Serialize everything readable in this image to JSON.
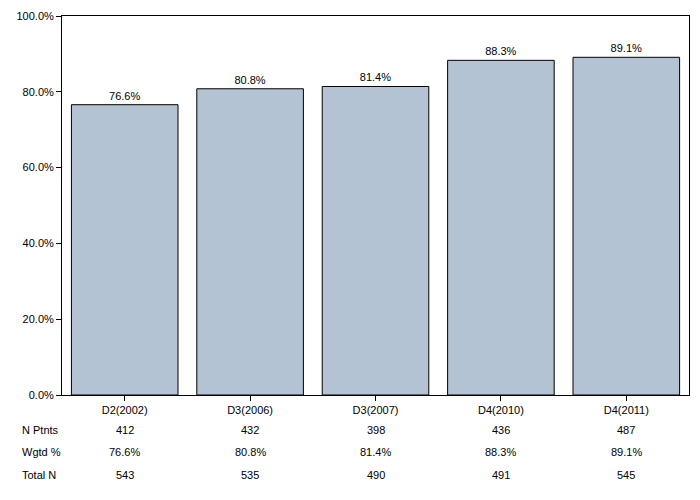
{
  "chart_data": {
    "type": "bar",
    "categories": [
      "D2(2002)",
      "D3(2006)",
      "D3(2007)",
      "D4(2010)",
      "D4(2011)"
    ],
    "values": [
      76.6,
      80.8,
      81.4,
      88.3,
      89.1
    ],
    "value_labels": [
      "76.6%",
      "80.8%",
      "81.4%",
      "88.3%",
      "89.1%"
    ],
    "color": "#b4c3d3",
    "data_labels": true,
    "grid": false,
    "ylim": [
      0,
      100
    ],
    "yticks": [
      {
        "value": 0,
        "label": "0.0%"
      },
      {
        "value": 20,
        "label": "20.0%"
      },
      {
        "value": 40,
        "label": "40.0%"
      },
      {
        "value": 60,
        "label": "60.0%"
      },
      {
        "value": 80,
        "label": "80.0%"
      },
      {
        "value": 100,
        "label": "100.0%"
      }
    ],
    "table_rows": [
      {
        "label": "N Ptnts",
        "values": [
          412,
          432,
          398,
          436,
          487
        ]
      },
      {
        "label": "Wgtd %",
        "values": [
          "76.6%",
          "80.8%",
          "81.4%",
          "88.3%",
          "89.1%"
        ]
      },
      {
        "label": "Total N",
        "values": [
          543,
          535,
          490,
          491,
          545
        ]
      }
    ]
  }
}
